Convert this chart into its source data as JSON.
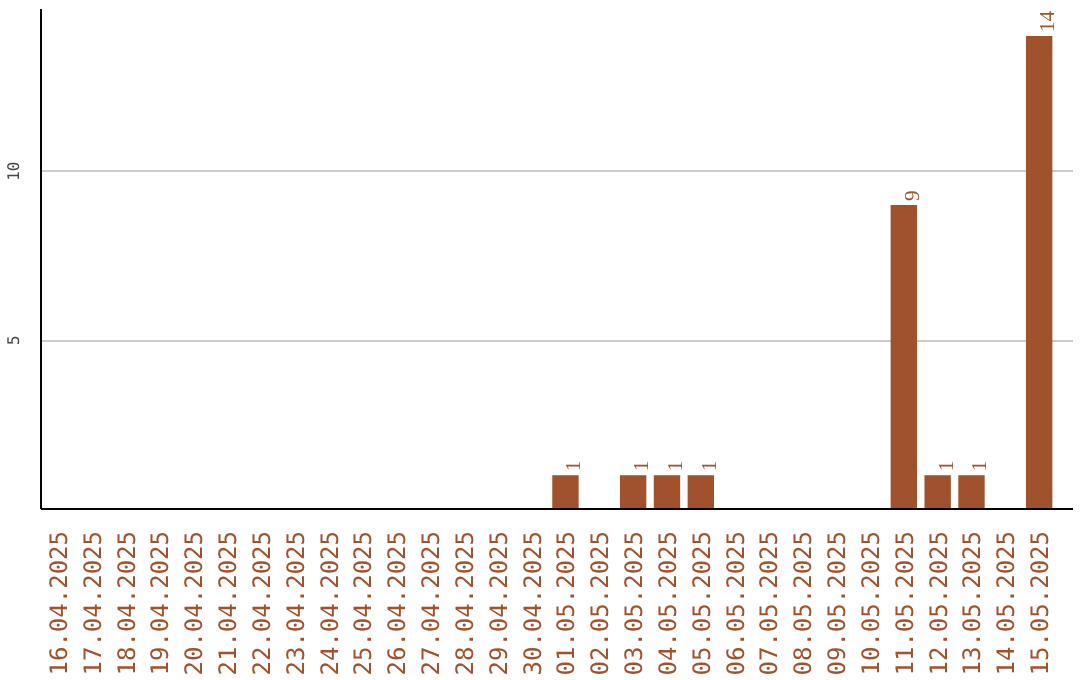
{
  "chart_data": {
    "type": "bar",
    "categories": [
      "16.04.2025",
      "17.04.2025",
      "18.04.2025",
      "19.04.2025",
      "20.04.2025",
      "21.04.2025",
      "22.04.2025",
      "23.04.2025",
      "24.04.2025",
      "25.04.2025",
      "26.04.2025",
      "27.04.2025",
      "28.04.2025",
      "29.04.2025",
      "30.04.2025",
      "01.05.2025",
      "02.05.2025",
      "03.05.2025",
      "04.05.2025",
      "05.05.2025",
      "06.05.2025",
      "07.05.2025",
      "08.05.2025",
      "09.05.2025",
      "10.05.2025",
      "11.05.2025",
      "12.05.2025",
      "13.05.2025",
      "14.05.2025",
      "15.05.2025"
    ],
    "values": [
      0,
      0,
      0,
      0,
      0,
      0,
      0,
      0,
      0,
      0,
      0,
      0,
      0,
      0,
      0,
      1,
      0,
      1,
      1,
      1,
      0,
      0,
      0,
      0,
      0,
      9,
      1,
      1,
      0,
      14
    ],
    "value_labels": [
      null,
      null,
      null,
      null,
      null,
      null,
      null,
      null,
      null,
      null,
      null,
      null,
      null,
      null,
      null,
      "1",
      null,
      "1",
      "1",
      "1",
      null,
      null,
      null,
      null,
      null,
      "9",
      "1",
      "1",
      null,
      "14"
    ],
    "color": "#a0522d",
    "ylim": [
      0,
      14.8
    ],
    "yticks": [
      5,
      10
    ],
    "grid": "y"
  }
}
